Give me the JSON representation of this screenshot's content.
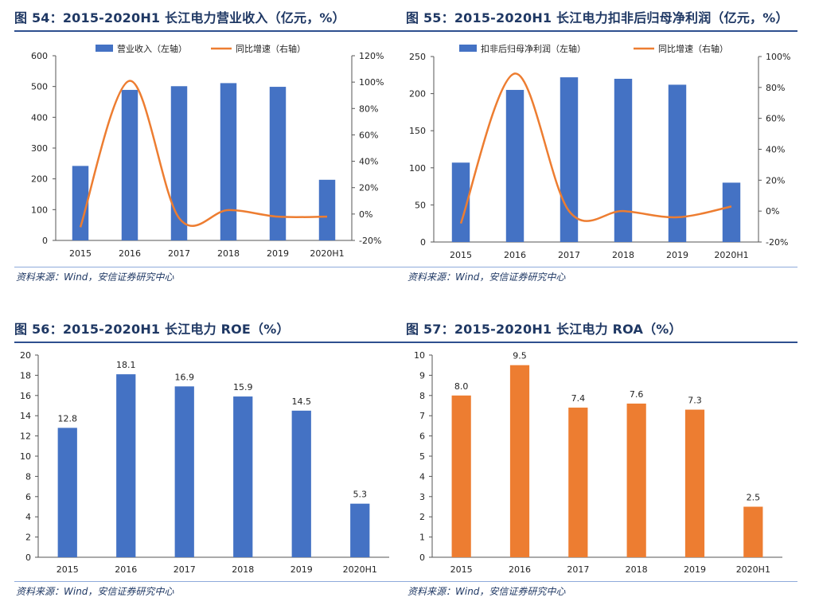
{
  "panels": [
    {
      "title": "图 54：2015-2020H1 长江电力营业收入（亿元，%）",
      "source": "资料来源：Wind，安信证券研究中心"
    },
    {
      "title": "图 55：2015-2020H1 长江电力扣非后归母净利润（亿元，%）",
      "source": "资料来源：Wind，安信证券研究中心"
    },
    {
      "title": "图 56：2015-2020H1 长江电力 ROE（%）",
      "source": "资料来源：Wind，安信证券研究中心"
    },
    {
      "title": "图 57：2015-2020H1 长江电力 ROA（%）",
      "source": "资料来源：Wind，安信证券研究中心"
    }
  ],
  "colors": {
    "bar_blue": "#4472c4",
    "line_orange": "#ed7d31",
    "bar_orange": "#ed7d31",
    "title_blue": "#1f3864",
    "rule_blue": "#2e4f8f"
  },
  "chart_data": [
    {
      "type": "bar+line",
      "categories": [
        "2015",
        "2016",
        "2017",
        "2018",
        "2019",
        "2020H1"
      ],
      "series": [
        {
          "name": "营业收入（左轴）",
          "kind": "bar",
          "axis": "left",
          "values": [
            242,
            489,
            501,
            511,
            499,
            197
          ]
        },
        {
          "name": "同比增速（右轴）",
          "kind": "line",
          "axis": "right",
          "values": [
            -10,
            101,
            -3,
            3,
            -2,
            -2
          ]
        }
      ],
      "yleft": {
        "min": 0,
        "max": 600,
        "ticks": [
          "0",
          "100",
          "200",
          "300",
          "400",
          "500",
          "600"
        ]
      },
      "yright": {
        "min": -20,
        "max": 120,
        "ticks": [
          "-20%",
          "0%",
          "20%",
          "40%",
          "60%",
          "80%",
          "100%",
          "120%"
        ]
      },
      "grid": false,
      "legend": "top"
    },
    {
      "type": "bar+line",
      "categories": [
        "2015",
        "2016",
        "2017",
        "2018",
        "2019",
        "2020H1"
      ],
      "series": [
        {
          "name": "扣非后归母净利润（左轴）",
          "kind": "bar",
          "axis": "left",
          "values": [
            107,
            205,
            222,
            220,
            212,
            80
          ]
        },
        {
          "name": "同比增速（右轴）",
          "kind": "line",
          "axis": "right",
          "values": [
            -8,
            89,
            0,
            0,
            -4,
            3
          ]
        }
      ],
      "yleft": {
        "min": 0,
        "max": 250,
        "ticks": [
          "0",
          "50",
          "100",
          "150",
          "200",
          "250"
        ]
      },
      "yright": {
        "min": -20,
        "max": 100,
        "ticks": [
          "-20%",
          "0%",
          "20%",
          "40%",
          "60%",
          "80%",
          "100%"
        ]
      },
      "grid": false,
      "legend": "top"
    },
    {
      "type": "bar",
      "categories": [
        "2015",
        "2016",
        "2017",
        "2018",
        "2019",
        "2020H1"
      ],
      "values": [
        12.8,
        18.1,
        16.9,
        15.9,
        14.5,
        5.3
      ],
      "labels": [
        "12.8",
        "18.1",
        "16.9",
        "15.9",
        "14.5",
        "5.3"
      ],
      "ylim": [
        0,
        20
      ],
      "ticks": [
        "0",
        "2",
        "4",
        "6",
        "8",
        "10",
        "12",
        "14",
        "16",
        "18",
        "20"
      ],
      "grid": false
    },
    {
      "type": "bar",
      "categories": [
        "2015",
        "2016",
        "2017",
        "2018",
        "2019",
        "2020H1"
      ],
      "values": [
        8.0,
        9.5,
        7.4,
        7.6,
        7.3,
        2.5
      ],
      "labels": [
        "8.0",
        "9.5",
        "7.4",
        "7.6",
        "7.3",
        "2.5"
      ],
      "ylim": [
        0,
        10
      ],
      "ticks": [
        "0",
        "1",
        "2",
        "3",
        "4",
        "5",
        "6",
        "7",
        "8",
        "9",
        "10"
      ],
      "grid": false
    }
  ]
}
